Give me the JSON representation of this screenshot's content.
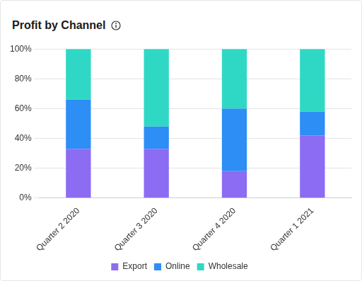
{
  "chart_data": {
    "type": "bar",
    "title": "Profit by Channel",
    "categories": [
      "Quarter 2 2020",
      "Quarter 3 2020",
      "Quarter 4 2020",
      "Quarter 1 2021"
    ],
    "series": [
      {
        "name": "Export",
        "color": "#8b6cf2",
        "values": [
          33,
          33,
          18,
          42
        ]
      },
      {
        "name": "Online",
        "color": "#2d8ef5",
        "values": [
          33,
          15,
          42,
          16
        ]
      },
      {
        "name": "Wholesale",
        "color": "#2fd8c4",
        "values": [
          34,
          52,
          40,
          42
        ]
      }
    ],
    "stacked": true,
    "ylim": [
      0,
      100
    ],
    "yticks": [
      {
        "value": 0,
        "label": "0%"
      },
      {
        "value": 20,
        "label": "20%"
      },
      {
        "value": 40,
        "label": "40%"
      },
      {
        "value": 60,
        "label": "60%"
      },
      {
        "value": 80,
        "label": "80%"
      },
      {
        "value": 100,
        "label": "100%"
      }
    ],
    "grid": true,
    "legend": "bottom"
  }
}
